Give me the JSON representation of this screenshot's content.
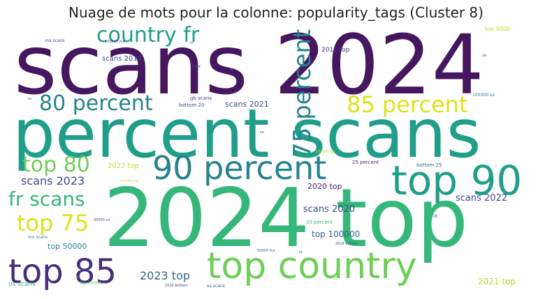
{
  "title": "Nuage de mots pour la colonne: popularity_tags (Cluster 8)",
  "palette": {
    "dark_purple": "#46175f",
    "purple": "#472d7b",
    "slate": "#3e4989",
    "steel": "#31688e",
    "teal": "#26828e",
    "green_teal": "#1f9e89",
    "green": "#35b779",
    "light_green": "#6ece58",
    "lime": "#b5de2b",
    "yellow": "#dde318"
  },
  "words": {
    "scans_2024": "scans 2024",
    "percent_scans": "percent scans",
    "top_2024": "2024 top",
    "top_country": "top country",
    "percent_90": "90 percent",
    "top_90": "top 90",
    "country_fr": "country fr",
    "percent_80": "80 percent",
    "percent_85": "85 percent",
    "percent_75": "75 percent",
    "top_80": "top 80",
    "top_85": "top 85",
    "top_75": "top 75",
    "fr_scans": "fr scans",
    "scans_2023": "scans 2023",
    "scans_2022": "scans 2022",
    "scans_2020": "scans 2020",
    "top_2023": "2023 top",
    "top_2021": "2021 top",
    "top_100000": "top 100000",
    "top_50000": "top 50000",
    "top_2020": "2020 top",
    "scans_2019": "scans 2019",
    "scans_2021": "scans 2021",
    "top_2022": "2022 top",
    "top_2019": "2019 top",
    "top_5000": "top 5000",
    "gb_scans": "gb scans",
    "bottom_20": "bottom 20",
    "bottom_25": "bottom 25",
    "percent_25": "25 percent",
    "percent_20": "20 percent",
    "ma_scans": "ma scans",
    "mx_scans": "mx scans",
    "us_scans": "us scans",
    "top_10000": "top 10000",
    "bottom_2020": "2020 bottom",
    "bottom_2019": "2019 bottom",
    "es_scans": "es scans",
    "us_100000": "100000 us",
    "us_50000": "50000 us",
    "gb_100000": "100000 gb",
    "ma_100000": "100000 ma",
    "ma_50000": "50000 ma",
    "country_us": "country us",
    "n_1000": "1000",
    "ca": "ca",
    "ru": "ru",
    "nl": "nl",
    "ng": "ng",
    "pt": "pt",
    "za": "za",
    "id": "id",
    "ve": "ve",
    "co": "co"
  }
}
